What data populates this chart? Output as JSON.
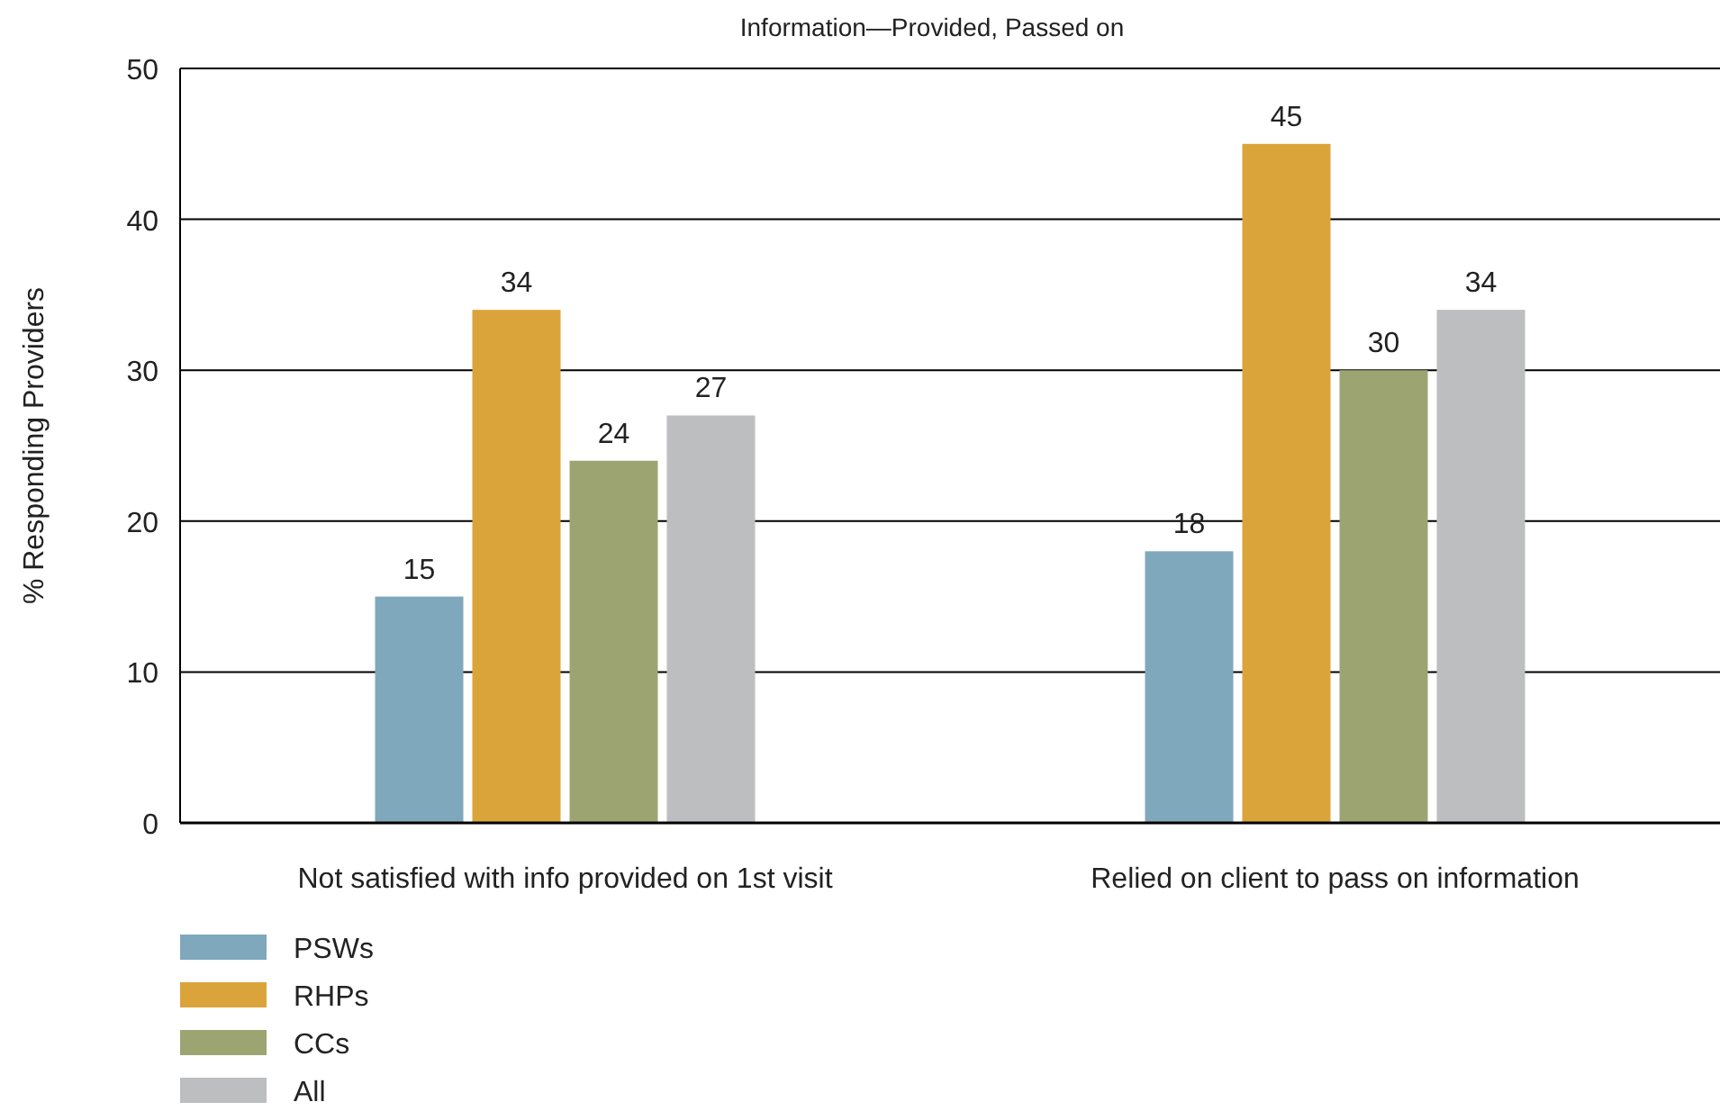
{
  "chart_data": {
    "type": "bar",
    "title": "Information—Provided, Passed on",
    "ylabel": "% Responding Providers",
    "categories": [
      "Not satisfied with info provided on 1st visit",
      "Relied on client to pass on information"
    ],
    "series": [
      {
        "name": "PSWs",
        "color": "#7fa8bc",
        "values": [
          15,
          18
        ]
      },
      {
        "name": "RHPs",
        "color": "#dba43a",
        "values": [
          34,
          45
        ]
      },
      {
        "name": "CCs",
        "color": "#9ca572",
        "values": [
          24,
          30
        ]
      },
      {
        "name": "All",
        "color": "#bdbebf",
        "values": [
          27,
          34
        ]
      }
    ],
    "ylim": [
      0,
      50
    ],
    "yticks": [
      0,
      10,
      20,
      30,
      40,
      50
    ],
    "grid": "y",
    "legend": "bottom left",
    "data_labels": true
  }
}
